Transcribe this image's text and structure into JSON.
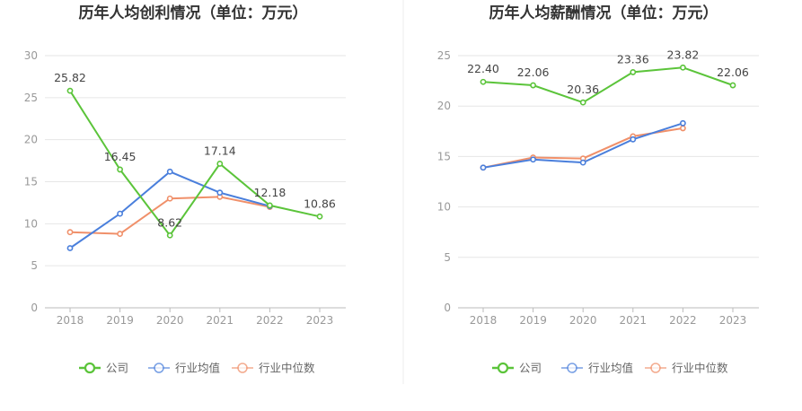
{
  "colors": {
    "company": "#5bc43a",
    "industry_avg": "#4a7fdc",
    "industry_median": "#f0906a"
  },
  "chart_data": [
    {
      "type": "line",
      "title": "历年人均创利情况（单位：万元）",
      "categories": [
        "2018",
        "2019",
        "2020",
        "2021",
        "2022",
        "2023"
      ],
      "ylim": [
        0,
        30
      ],
      "yticks": [
        0,
        5,
        10,
        15,
        20,
        25,
        30
      ],
      "grid": true,
      "legend_position": "bottom",
      "series": [
        {
          "key": "company",
          "name": "公司",
          "values": [
            25.82,
            16.45,
            8.62,
            17.14,
            12.18,
            10.86
          ],
          "labels": [
            "25.82",
            "16.45",
            "8.62",
            "17.14",
            "12.18",
            "10.86"
          ]
        },
        {
          "key": "industry_avg",
          "name": "行业均值",
          "values": [
            7.1,
            11.2,
            16.2,
            13.7,
            12.1,
            null
          ]
        },
        {
          "key": "industry_median",
          "name": "行业中位数",
          "values": [
            9.0,
            8.8,
            13.0,
            13.2,
            12.0,
            null
          ]
        }
      ]
    },
    {
      "type": "line",
      "title": "历年人均薪酬情况（单位：万元）",
      "categories": [
        "2018",
        "2019",
        "2020",
        "2021",
        "2022",
        "2023"
      ],
      "ylim": [
        0,
        25
      ],
      "yticks": [
        0,
        5,
        10,
        15,
        20,
        25
      ],
      "grid": true,
      "legend_position": "bottom",
      "series": [
        {
          "key": "company",
          "name": "公司",
          "values": [
            22.4,
            22.06,
            20.36,
            23.36,
            23.82,
            22.06
          ],
          "labels": [
            "22.40",
            "22.06",
            "20.36",
            "23.36",
            "23.82",
            "22.06"
          ]
        },
        {
          "key": "industry_avg",
          "name": "行业均值",
          "values": [
            13.9,
            14.7,
            14.4,
            16.7,
            18.3,
            null
          ]
        },
        {
          "key": "industry_median",
          "name": "行业中位数",
          "values": [
            13.9,
            14.9,
            14.8,
            17.0,
            17.8,
            null
          ]
        }
      ]
    }
  ]
}
